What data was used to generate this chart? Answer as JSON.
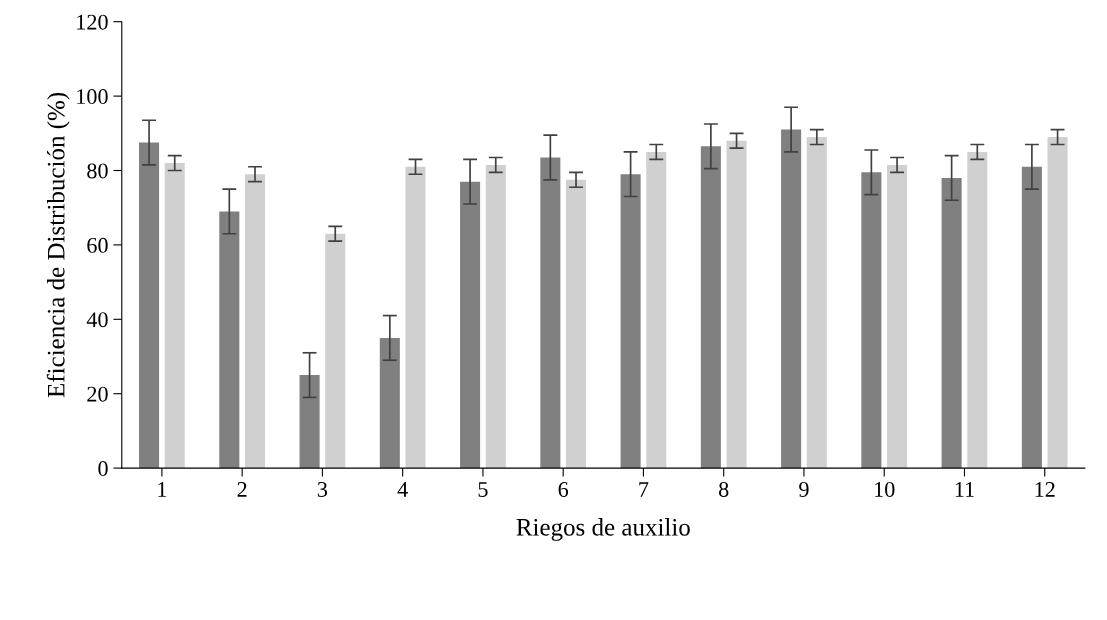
{
  "chart_data": {
    "type": "bar",
    "xlabel": "Riegos de auxilio",
    "ylabel": "Eficiencia de Distribución (%)",
    "categories": [
      "1",
      "2",
      "3",
      "4",
      "5",
      "6",
      "7",
      "8",
      "9",
      "10",
      "11",
      "12"
    ],
    "series": [
      {
        "color": "#808080",
        "values": [
          87.5,
          69,
          25,
          35,
          77,
          83.5,
          79,
          86.5,
          91,
          79.5,
          78,
          81
        ],
        "errors": [
          6,
          6,
          6,
          6,
          6,
          6,
          6,
          6,
          6,
          6,
          6,
          6
        ]
      },
      {
        "color": "#d0d0d0",
        "values": [
          82,
          79,
          63,
          81,
          81.5,
          77.5,
          85,
          88,
          89,
          81.5,
          85,
          89
        ],
        "errors": [
          2,
          2,
          2,
          2,
          2,
          2,
          2,
          2,
          2,
          2,
          2,
          2
        ]
      }
    ],
    "ylim": [
      0,
      120
    ],
    "yticks": [
      0,
      20,
      40,
      60,
      80,
      100,
      120
    ],
    "grid": false
  }
}
